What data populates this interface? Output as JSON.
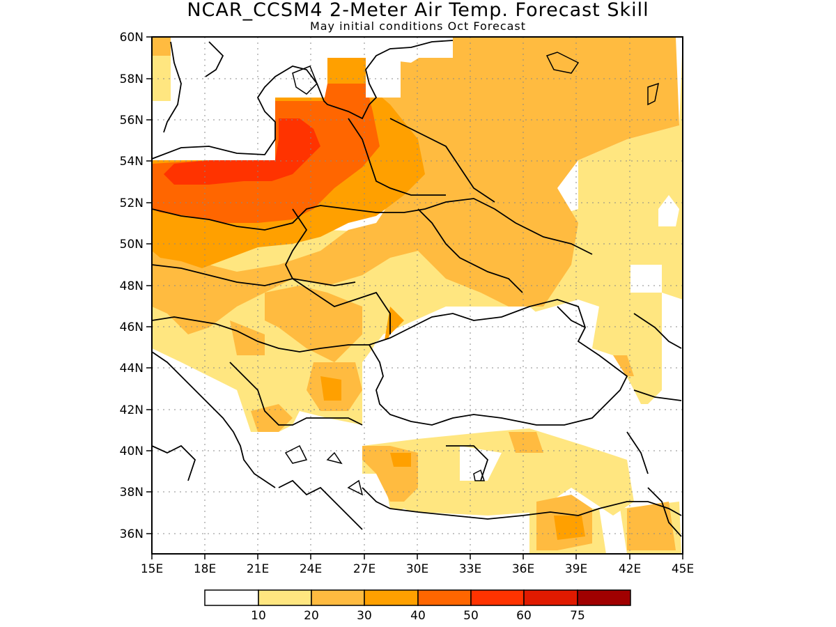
{
  "title": "NCAR_CCSM4 2-Meter Air Temp. Forecast Skill",
  "subtitle": "May initial conditions  Oct Forecast",
  "axes": {
    "lon_labels": [
      "15E",
      "18E",
      "21E",
      "24E",
      "27E",
      "30E",
      "33E",
      "36E",
      "39E",
      "42E",
      "45E"
    ],
    "lat_labels": [
      "60N",
      "58N",
      "56N",
      "54N",
      "52N",
      "50N",
      "48N",
      "46N",
      "44N",
      "42N",
      "40N",
      "38N",
      "36N"
    ],
    "lon_range": [
      15,
      45
    ],
    "lat_range": [
      35,
      60
    ],
    "grid": true
  },
  "colorbar": {
    "labels": [
      "10",
      "20",
      "30",
      "40",
      "50",
      "60",
      "75"
    ],
    "colors": [
      "#ffffff",
      "#ffe680",
      "#ffbb40",
      "#ffa000",
      "#ff6600",
      "#ff3300",
      "#e01a00",
      "#a00000"
    ]
  },
  "colors": {
    "level_10_20": "#ffe680",
    "level_20_30": "#ffbb40",
    "level_30_40": "#ffa000",
    "level_40_50": "#ff6600",
    "level_50_60": "#ff3300"
  }
}
